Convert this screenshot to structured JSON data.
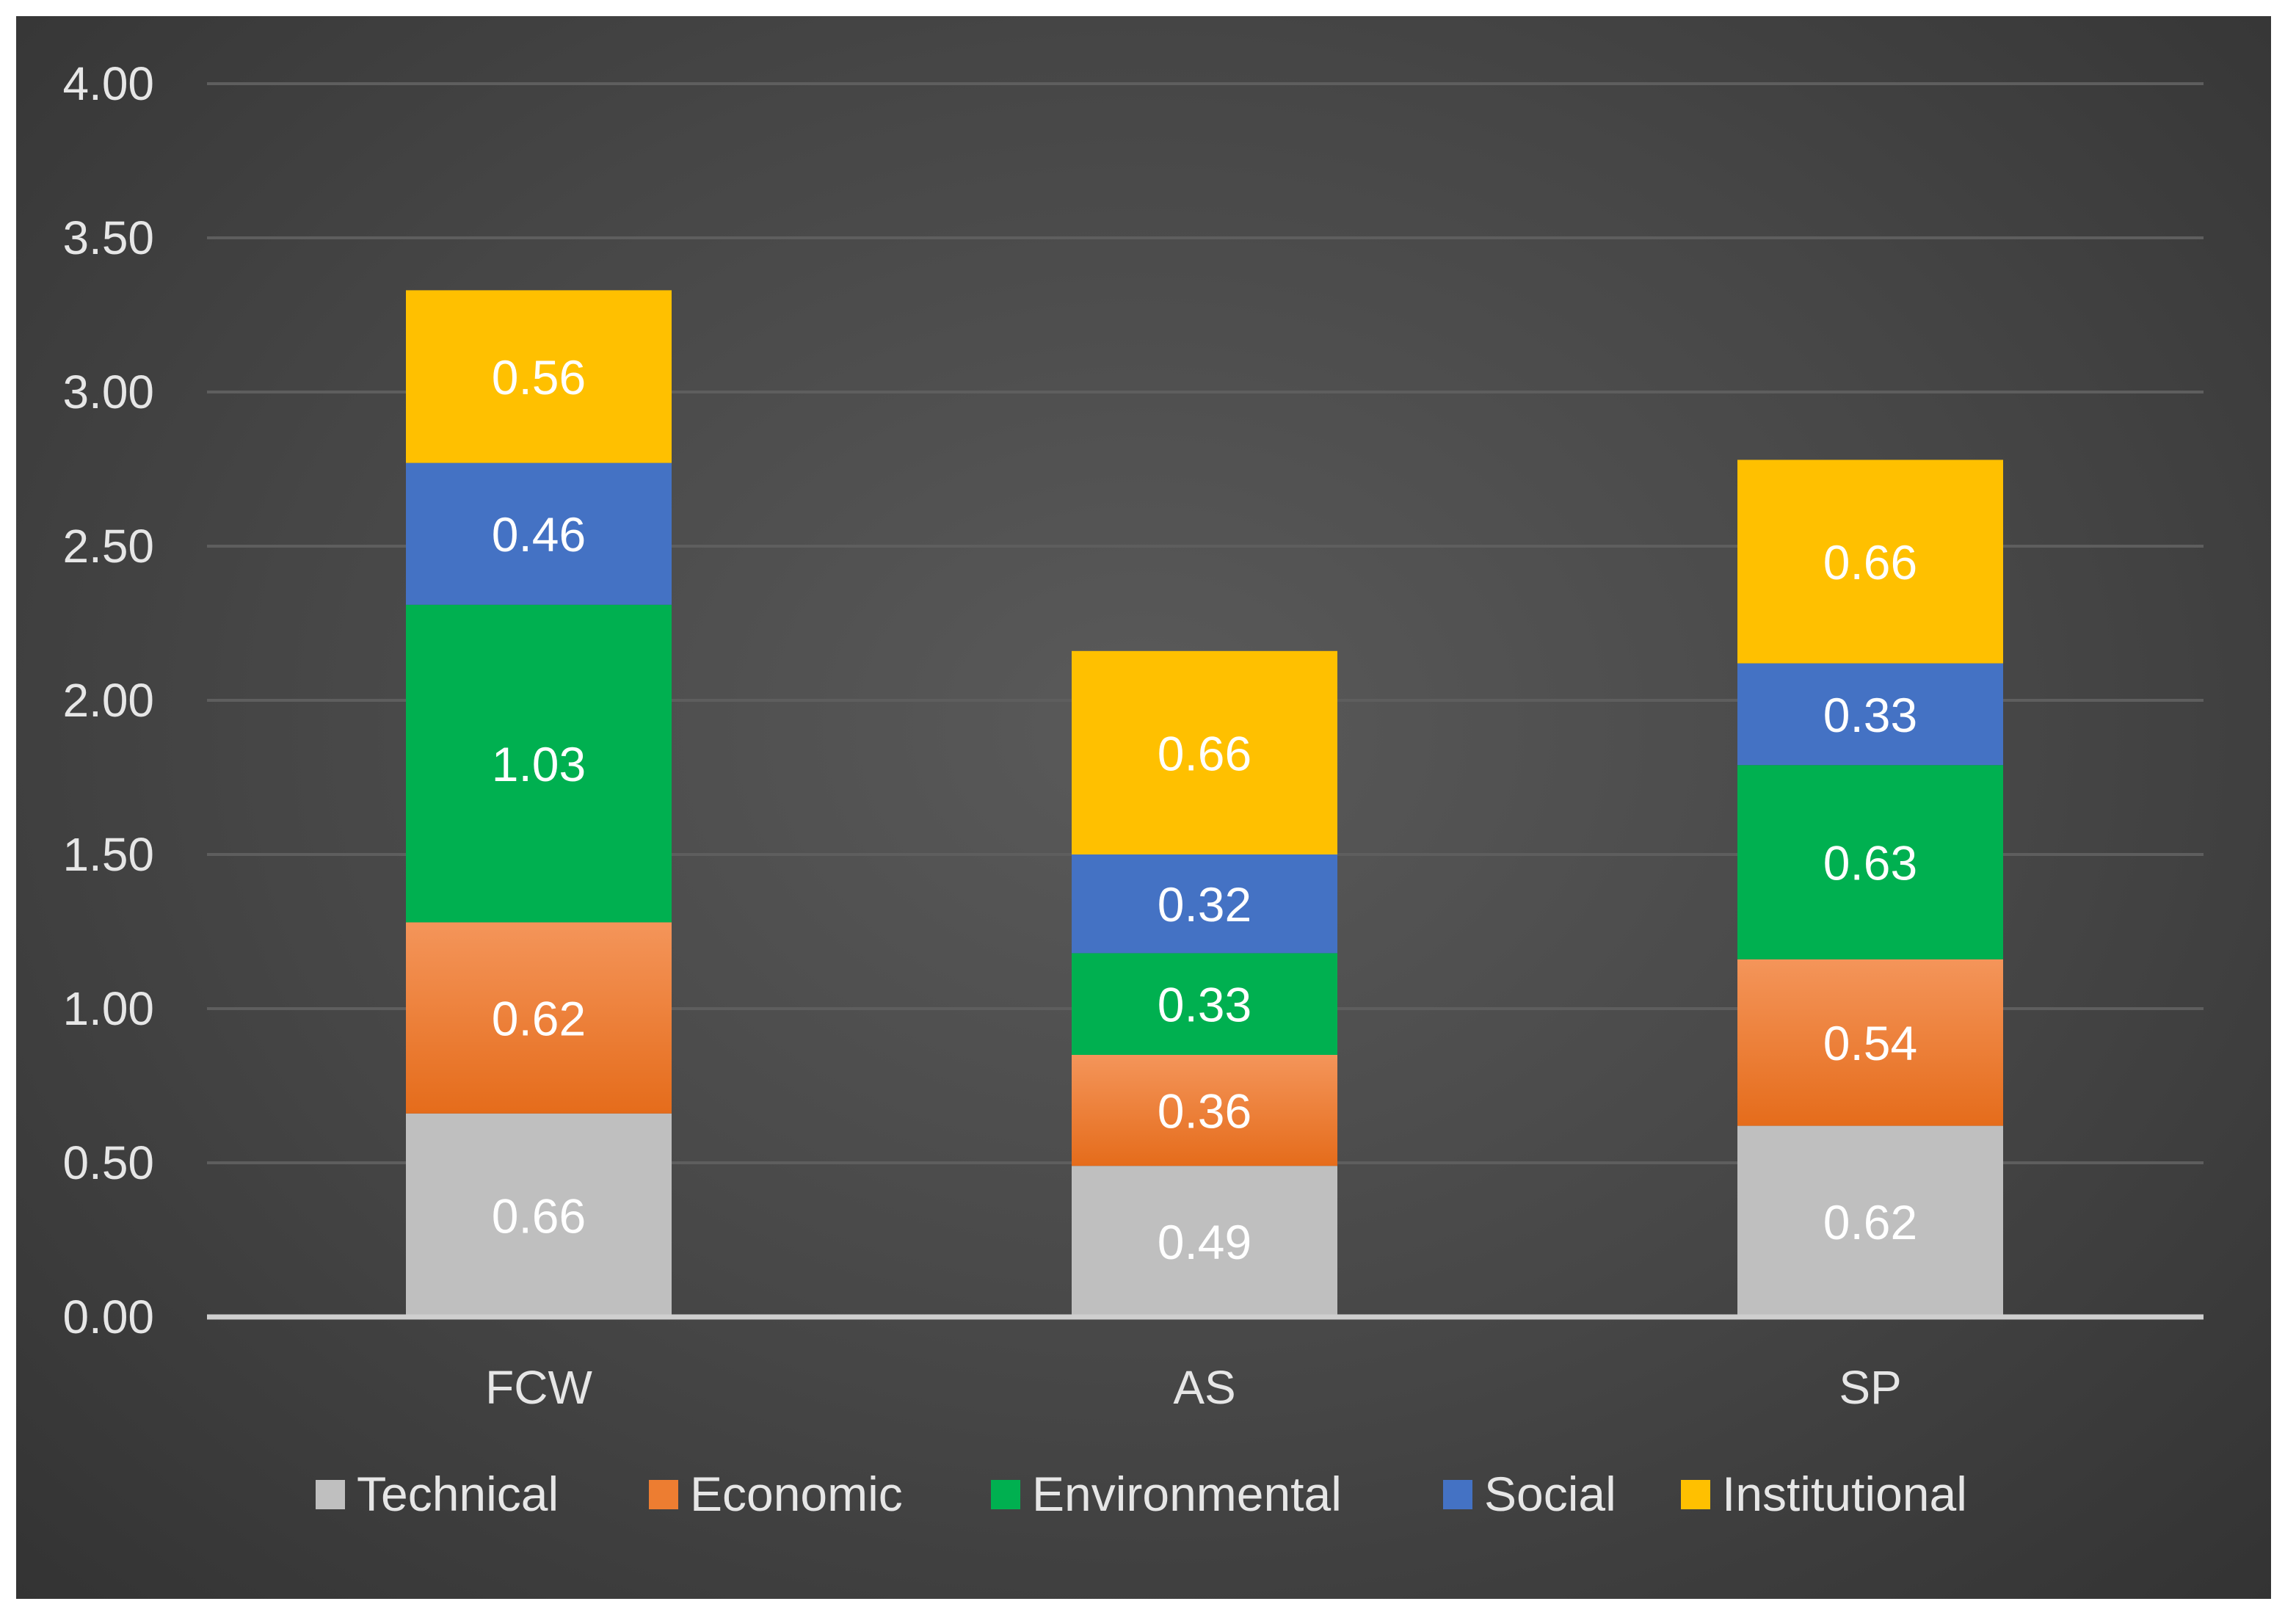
{
  "chart_data": {
    "type": "bar",
    "stacked": true,
    "title": "",
    "xlabel": "",
    "ylabel": "",
    "categories": [
      "FCW",
      "AS",
      "SP"
    ],
    "ylim": [
      0,
      4
    ],
    "ytick_labels": [
      "0.00",
      "0.50",
      "1.00",
      "1.50",
      "2.00",
      "2.50",
      "3.00",
      "3.50",
      "4.00"
    ],
    "grid": true,
    "legend_position": "bottom",
    "series": [
      {
        "name": "Technical",
        "color": "#bfbfbf",
        "values": [
          0.66,
          0.49,
          0.62
        ],
        "labels": [
          "0.66",
          "0.49",
          "0.62"
        ]
      },
      {
        "name": "Economic",
        "color": "#ed7d31",
        "values": [
          0.62,
          0.36,
          0.54
        ],
        "labels": [
          "0.62",
          "0.36",
          "0.54"
        ]
      },
      {
        "name": "Environmental",
        "color": "#00b050",
        "values": [
          1.03,
          0.33,
          0.63
        ],
        "labels": [
          "1.03",
          "0.33",
          "0.63"
        ]
      },
      {
        "name": "Social",
        "color": "#4472c4",
        "values": [
          0.46,
          0.32,
          0.33
        ],
        "labels": [
          "0.46",
          "0.32",
          "0.33"
        ]
      },
      {
        "name": "Institutional",
        "color": "#ffc000",
        "values": [
          0.56,
          0.66,
          0.66
        ],
        "labels": [
          "0.56",
          "0.66",
          "0.66"
        ]
      }
    ]
  }
}
